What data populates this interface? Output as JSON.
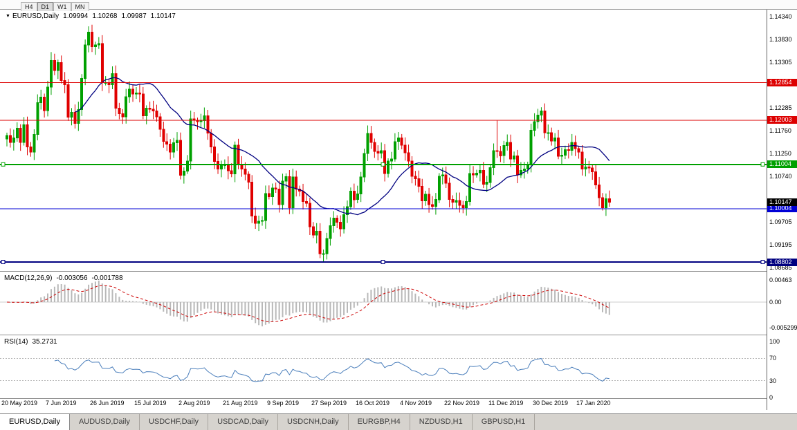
{
  "toolbar": {
    "timeframes": [
      "H4",
      "D1",
      "W1",
      "MN"
    ],
    "active": "D1"
  },
  "chart_title": {
    "symbol": "EURUSD,Daily",
    "open": "1.09994",
    "high": "1.10268",
    "low": "1.09987",
    "close": "1.10147"
  },
  "price_axis_labels": [
    "1.14340",
    "1.13830",
    "1.13305",
    "1.12285",
    "1.11760",
    "1.11250",
    "1.10740",
    "1.09705",
    "1.09195",
    "1.08685"
  ],
  "hlines": [
    {
      "price": 1.12854,
      "label": "1.12854",
      "color": "#DD0000",
      "width": 1,
      "handles": false
    },
    {
      "price": 1.12003,
      "label": "1.12003",
      "color": "#DD0000",
      "width": 1,
      "handles": false
    },
    {
      "price": 1.11004,
      "label": "1.11004",
      "color": "#00A000",
      "width": 2,
      "handles": true
    },
    {
      "price": 1.10004,
      "label": "1.10004",
      "color": "#0000D6",
      "width": 1,
      "handles": false
    },
    {
      "price": 1.08802,
      "label": "1.08802",
      "color": "#000080",
      "width": 2,
      "handles": true
    }
  ],
  "current_price_badge": {
    "price": 1.10147,
    "label": "1.10147",
    "color": "#000000"
  },
  "macd_panel": {
    "label": "MACD(12,26,9)",
    "value1": "-0.003056",
    "value2": "-0.001788",
    "axis": [
      "0.00463",
      "0.00",
      "-0.005299"
    ]
  },
  "rsi_panel": {
    "label": "RSI(14)",
    "value": "35.2731",
    "axis": [
      "100",
      "70",
      "30",
      "0"
    ],
    "levels": [
      70,
      30
    ]
  },
  "date_axis": [
    "20 May 2019",
    "7 Jun 2019",
    "26 Jun 2019",
    "15 Jul 2019",
    "2 Aug 2019",
    "21 Aug 2019",
    "9 Sep 2019",
    "27 Sep 2019",
    "16 Oct 2019",
    "4 Nov 2019",
    "22 Nov 2019",
    "11 Dec 2019",
    "30 Dec 2019",
    "17 Jan 2020"
  ],
  "tabs": [
    {
      "label": "EURUSD,Daily",
      "active": true
    },
    {
      "label": "AUDUSD,Daily",
      "active": false
    },
    {
      "label": "USDCHF,Daily",
      "active": false
    },
    {
      "label": "USDCAD,Daily",
      "active": false
    },
    {
      "label": "USDCNH,Daily",
      "active": false
    },
    {
      "label": "EURGBP,H4",
      "active": false
    },
    {
      "label": "NZDUSD,H1",
      "active": false
    },
    {
      "label": "GBPUSD,H1",
      "active": false
    }
  ],
  "colors": {
    "candle_up": "#00A000",
    "candle_down": "#E00000",
    "ma": "#000080",
    "macd_hist": "#B8B8B8",
    "macd_signal": "#CC0000",
    "rsi_line": "#4A7EBB",
    "rsi_level": "#B4B4B4"
  },
  "chart_data": {
    "type": "candlestick",
    "symbol": "EURUSD",
    "timeframe": "Daily",
    "title": "EURUSD,Daily 1.09994 1.10268 1.09987 1.10147",
    "ohlc_display": {
      "open": 1.09994,
      "high": 1.10268,
      "low": 1.09987,
      "close": 1.10147
    },
    "y_range": [
      1.085,
      1.145
    ],
    "x_tick_spacing_bars": 13,
    "closes": [
      1.1166,
      1.115,
      1.116,
      1.1182,
      1.115,
      1.119,
      1.114,
      1.1128,
      1.1168,
      1.124,
      1.1252,
      1.1222,
      1.1275,
      1.1335,
      1.1312,
      1.133,
      1.129,
      1.128,
      1.1207,
      1.1218,
      1.1193,
      1.1224,
      1.1294,
      1.137,
      1.1399,
      1.1366,
      1.137,
      1.1373,
      1.1285,
      1.1285,
      1.128,
      1.1305,
      1.1227,
      1.1215,
      1.1208,
      1.1253,
      1.127,
      1.1259,
      1.1262,
      1.1259,
      1.121,
      1.1227,
      1.1225,
      1.1221,
      1.1208,
      1.118,
      1.1152,
      1.1146,
      1.1128,
      1.1149,
      1.1155,
      1.1076,
      1.1085,
      1.1108,
      1.1203,
      1.12,
      1.1197,
      1.1199,
      1.121,
      1.1171,
      1.114,
      1.1107,
      1.109,
      1.1098,
      1.11,
      1.1086,
      1.1079,
      1.1144,
      1.11,
      1.109,
      1.1078,
      1.106,
      1.0984,
      1.0968,
      1.0972,
      1.0974,
      1.1035,
      1.1028,
      1.1047,
      1.1045,
      1.101,
      1.1063,
      1.1073,
      1.1003,
      1.1072,
      1.1045,
      1.104,
      1.1017,
      1.1013,
      1.096,
      1.0941,
      1.095,
      1.0899,
      1.0899,
      1.0933,
      1.0962,
      1.0979,
      1.097,
      1.0955,
      1.0987,
      1.1005,
      1.104,
      1.1021,
      1.1034,
      1.1072,
      1.1125,
      1.117,
      1.115,
      1.113,
      1.1126,
      1.1131,
      1.108,
      1.1108,
      1.1113,
      1.1152,
      1.116,
      1.1144,
      1.1127,
      1.1108,
      1.1074,
      1.1068,
      1.1051,
      1.1018,
      1.1033,
      1.101,
      1.1006,
      1.1021,
      1.1074,
      1.1077,
      1.1058,
      1.1021,
      1.1015,
      1.1019,
      1.1008,
      1.1003,
      1.1017,
      1.108,
      1.1077,
      1.1081,
      1.1087,
      1.1056,
      1.106,
      1.1093,
      1.1131,
      1.113,
      1.112,
      1.1143,
      1.115,
      1.1113,
      1.112,
      1.1077,
      1.1087,
      1.109,
      1.11,
      1.1177,
      1.1197,
      1.1212,
      1.1221,
      1.1172,
      1.1172,
      1.1153,
      1.116,
      1.1119,
      1.1121,
      1.1134,
      1.1132,
      1.115,
      1.1136,
      1.1128,
      1.109,
      1.1095,
      1.1092,
      1.1084,
      1.1054,
      1.1025,
      1.1003,
      1.1023,
      1.1015
    ],
    "wick_high_overrides": {
      "24": 1.1412,
      "144": 1.1199
    },
    "wick_low_overrides": {
      "93": 1.0879
    },
    "ma": {
      "type": "SMA",
      "period": 21
    },
    "macd": {
      "fast": 12,
      "slow": 26,
      "signal": 9,
      "last": -0.003056,
      "last_signal": -0.001788,
      "axis_ticks": [
        0.00463,
        0.0,
        -0.005299
      ]
    },
    "rsi": {
      "period": 14,
      "last": 35.2731,
      "levels": [
        30,
        70
      ],
      "axis_ticks": [
        100,
        70,
        30,
        0
      ]
    },
    "hline_prices": [
      1.12854,
      1.12003,
      1.11004,
      1.10004,
      1.08802
    ]
  }
}
